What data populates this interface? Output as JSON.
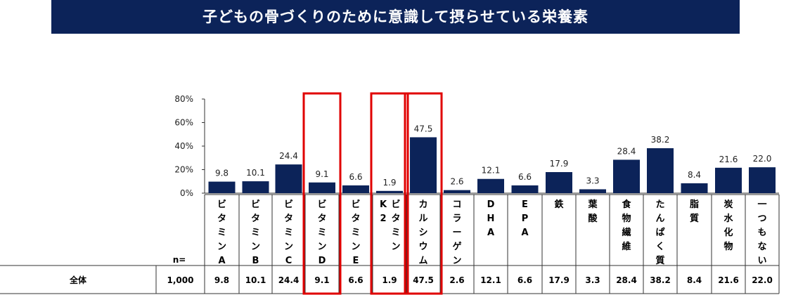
{
  "title": "子どもの骨づくりのために意識して摂らせている栄養素",
  "chart_data": {
    "type": "bar",
    "categories": [
      "ビタミンA",
      "ビタミンB",
      "ビタミンC",
      "ビタミンD",
      "ビタミンE",
      "ビタミンK2",
      "カルシウム",
      "コラーゲン",
      "DHA",
      "EPA",
      "鉄",
      "葉酸",
      "食物繊維",
      "たんぱく質",
      "脂質",
      "炭水化物",
      "一つもない"
    ],
    "category_lines": [
      [
        "ビ",
        "タ",
        "ミ",
        "ン",
        "A"
      ],
      [
        "ビ",
        "タ",
        "ミ",
        "ン",
        "B"
      ],
      [
        "ビ",
        "タ",
        "ミ",
        "ン",
        "C"
      ],
      [
        "ビ",
        "タ",
        "ミ",
        "ン",
        "D"
      ],
      [
        "ビ",
        "タ",
        "ミ",
        "ン",
        "E"
      ],
      [
        "ビ",
        "タ",
        "ミ",
        "ン"
      ],
      [
        "カ",
        "ル",
        "シ",
        "ウ",
        "ム"
      ],
      [
        "コ",
        "ラ",
        "ー",
        "ゲ",
        "ン"
      ],
      [
        "D",
        "H",
        "A"
      ],
      [
        "E",
        "P",
        "A"
      ],
      [
        "鉄"
      ],
      [
        "葉",
        "酸"
      ],
      [
        "食",
        "物",
        "繊",
        "維"
      ],
      [
        "た",
        "ん",
        "ぱ",
        "く",
        "質"
      ],
      [
        "脂",
        "質"
      ],
      [
        "炭",
        "水",
        "化",
        "物"
      ],
      [
        "一",
        "つ",
        "も",
        "な",
        "い"
      ]
    ],
    "category_subcolumn": [
      "",
      "",
      "",
      "",
      "",
      "K2",
      "",
      "",
      "",
      "",
      "",
      "",
      "",
      "",
      "",
      "",
      ""
    ],
    "values": [
      9.8,
      10.1,
      24.4,
      9.1,
      6.6,
      1.9,
      47.5,
      2.6,
      12.1,
      6.6,
      17.9,
      3.3,
      28.4,
      38.2,
      8.4,
      21.6,
      22.0
    ],
    "value_labels": [
      "9.8",
      "10.1",
      "24.4",
      "9.1",
      "6.6",
      "1.9",
      "47.5",
      "2.6",
      "12.1",
      "6.6",
      "17.9",
      "3.3",
      "28.4",
      "38.2",
      "8.4",
      "21.6",
      "22.0"
    ],
    "y_ticks": [
      "80%",
      "60%",
      "40%",
      "20%",
      "0%"
    ],
    "ylim": [
      0,
      80
    ],
    "highlighted_indices": [
      3,
      5,
      6
    ],
    "bar_color": "#0c2359",
    "highlight_color": "#e00000",
    "table": {
      "n_label": "n=",
      "row_label": "全体",
      "n_value": "1,000",
      "row_values": [
        "9.8",
        "10.1",
        "24.4",
        "9.1",
        "6.6",
        "1.9",
        "47.5",
        "2.6",
        "12.1",
        "6.6",
        "17.9",
        "3.3",
        "28.4",
        "38.2",
        "8.4",
        "21.6",
        "22.0"
      ]
    }
  }
}
